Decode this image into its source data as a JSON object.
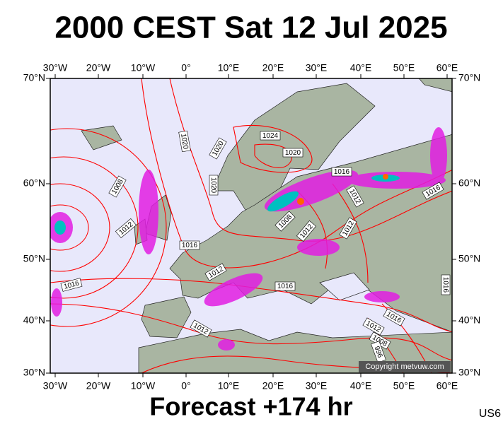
{
  "header": {
    "title": "2000 CEST Sat 12 Jul 2025"
  },
  "map": {
    "lon_labels": [
      "30°W",
      "20°W",
      "10°W",
      "0°",
      "10°E",
      "20°E",
      "30°E",
      "40°E",
      "50°E",
      "60°E"
    ],
    "lat_labels": [
      "70°N",
      "60°N",
      "50°N",
      "40°N",
      "30°N"
    ],
    "isobar_labels": [
      "1024",
      "1020",
      "1020",
      "1020",
      "1020",
      "1016",
      "1016",
      "1012",
      "1008",
      "1012",
      "1016",
      "1008",
      "1012",
      "1012",
      "1012",
      "1016",
      "1016",
      "1016",
      "1016",
      "1012",
      "1008",
      "1012",
      "996"
    ],
    "copyright": "Copyright metvuw.com"
  },
  "footer": {
    "forecast": "Forecast +174 hr",
    "code": "US6"
  }
}
